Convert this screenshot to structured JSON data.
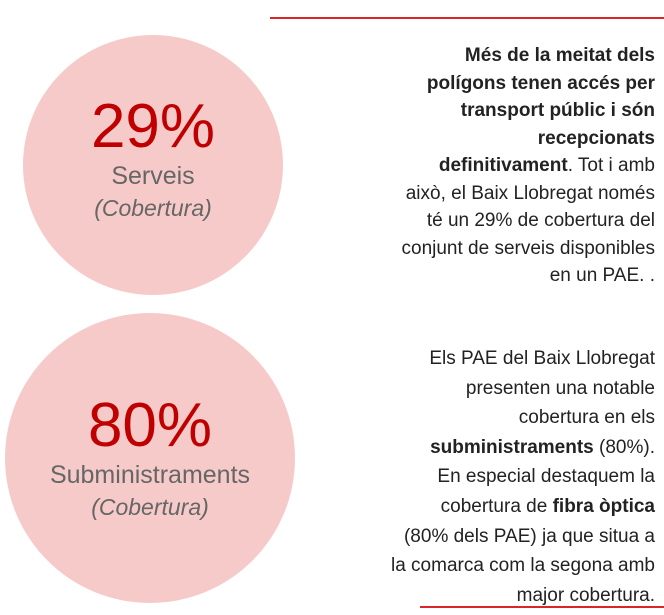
{
  "items": [
    {
      "value": "29%",
      "label": "Serveis",
      "sublabel": "(Cobertura)",
      "lines": [
        [
          {
            "text": "Més de la meitat dels",
            "bold": true
          }
        ],
        [
          {
            "text": "polígons tenen accés per",
            "bold": true
          }
        ],
        [
          {
            "text": "transport públic i són",
            "bold": true
          }
        ],
        [
          {
            "text": "recepcionats",
            "bold": true
          }
        ],
        [
          {
            "text": "definitivament",
            "bold": true
          },
          {
            "text": ". Tot i amb",
            "bold": false
          }
        ],
        [
          {
            "text": "això, el Baix Llobregat només",
            "bold": false
          }
        ],
        [
          {
            "text": "té un 29% de cobertura del",
            "bold": false
          }
        ],
        [
          {
            "text": "conjunt de serveis disponibles",
            "bold": false
          }
        ],
        [
          {
            "text": "en un PAE. .",
            "bold": false
          }
        ]
      ]
    },
    {
      "value": "80%",
      "label": "Subministraments",
      "sublabel": "(Cobertura)",
      "lines": [
        [
          {
            "text": "Els PAE del Baix Llobregat",
            "bold": false
          }
        ],
        [
          {
            "text": "presenten una notable",
            "bold": false
          }
        ],
        [
          {
            "text": "cobertura en els",
            "bold": false
          }
        ],
        [
          {
            "text": "subministraments",
            "bold": true
          },
          {
            "text": " (80%).",
            "bold": false
          }
        ],
        [
          {
            "text": "En especial destaquem la",
            "bold": false
          }
        ],
        [
          {
            "text": "cobertura de ",
            "bold": false
          },
          {
            "text": "fibra òptica",
            "bold": true
          }
        ],
        [
          {
            "text": "(80% dels PAE) ja que situa a",
            "bold": false
          }
        ],
        [
          {
            "text": "la comarca com la segona amb",
            "bold": false
          }
        ],
        [
          {
            "text": "major cobertura.",
            "bold": false
          }
        ]
      ]
    }
  ]
}
